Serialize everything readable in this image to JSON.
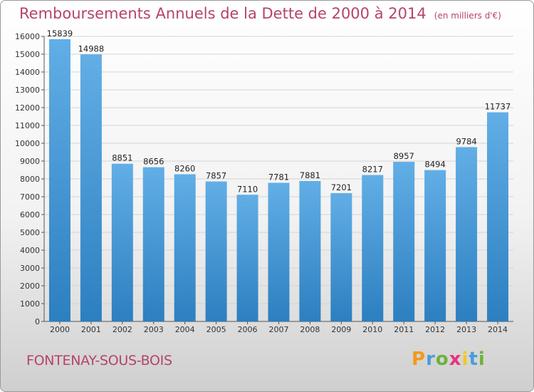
{
  "header": {
    "title": "Remboursements Annuels de la Dette de 2000 à 2014",
    "unit": "(en milliers d'€)"
  },
  "footer": {
    "commune": "FONTENAY-SOUS-BOIS",
    "logo_letters": [
      "P",
      "r",
      "o",
      "x",
      "i",
      "t",
      "i"
    ]
  },
  "colors": {
    "bar_top": "#62aee6",
    "bar_bottom": "#2c7fc0",
    "title": "#b5446a",
    "logo": [
      "#f29a1d",
      "#4a9ed9",
      "#6cb33f",
      "#e8327c",
      "#f2c81d",
      "#4a9ed9",
      "#6cb33f"
    ]
  },
  "chart_data": {
    "type": "bar",
    "title": "Remboursements Annuels de la Dette de 2000 à 2014",
    "xlabel": "",
    "ylabel": "",
    "categories": [
      "2000",
      "2001",
      "2002",
      "2003",
      "2004",
      "2005",
      "2006",
      "2007",
      "2008",
      "2009",
      "2010",
      "2011",
      "2012",
      "2013",
      "2014"
    ],
    "values": [
      15839,
      14988,
      8851,
      8656,
      8260,
      7857,
      7110,
      7781,
      7881,
      7201,
      8217,
      8957,
      8494,
      9784,
      11737
    ],
    "data_labels": [
      "15839",
      "14988",
      "8851",
      "8656",
      "8260",
      "7857",
      "7110",
      "7781",
      "7881",
      "7201",
      "8217",
      "8957",
      "8494",
      "9784",
      "11737"
    ],
    "ylim": [
      0,
      16000
    ],
    "yticks": [
      "0",
      "1000",
      "2000",
      "3000",
      "4000",
      "5000",
      "6000",
      "7000",
      "8000",
      "9000",
      "10000",
      "11000",
      "12000",
      "13000",
      "14000",
      "15000",
      "16000"
    ],
    "grid": true,
    "legend": "none"
  }
}
